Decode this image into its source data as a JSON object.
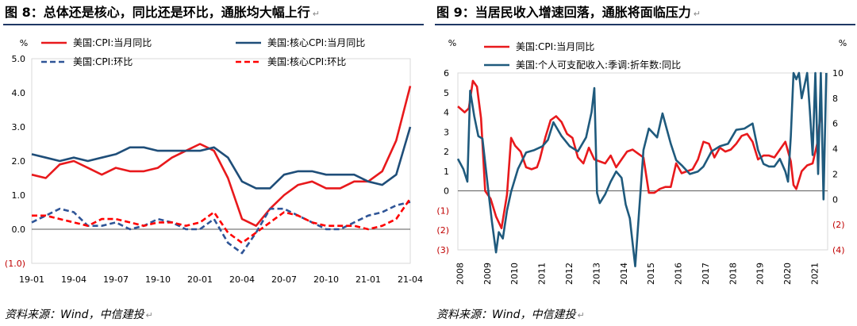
{
  "left": {
    "title": "图 8：总体还是核心，同比还是环比，通胀均大幅上行",
    "source": "资料来源：Wind，中信建投",
    "chart_data": {
      "type": "line",
      "ylabel": "%",
      "ylim": [
        -1.0,
        5.0
      ],
      "yticks": [
        -1.0,
        0.0,
        1.0,
        2.0,
        3.0,
        4.0,
        5.0
      ],
      "ytick_labels": [
        "(1.0)",
        "0.0",
        "1.0",
        "2.0",
        "3.0",
        "4.0",
        "5.0"
      ],
      "x_tick_labels": [
        "19-01",
        "19-04",
        "19-07",
        "19-10",
        "20-01",
        "20-04",
        "20-07",
        "20-10",
        "21-01",
        "21-04"
      ],
      "x": [
        "19-01",
        "19-02",
        "19-03",
        "19-04",
        "19-05",
        "19-06",
        "19-07",
        "19-08",
        "19-09",
        "19-10",
        "19-11",
        "19-12",
        "20-01",
        "20-02",
        "20-03",
        "20-04",
        "20-05",
        "20-06",
        "20-07",
        "20-08",
        "20-09",
        "20-10",
        "20-11",
        "20-12",
        "21-01",
        "21-02",
        "21-03",
        "21-04"
      ],
      "legend": "top",
      "series": [
        {
          "name": "美国:CPI:当月同比",
          "color": "#e8191c",
          "dash": "solid",
          "values": [
            1.6,
            1.5,
            1.9,
            2.0,
            1.8,
            1.6,
            1.8,
            1.7,
            1.7,
            1.8,
            2.1,
            2.3,
            2.5,
            2.3,
            1.5,
            0.3,
            0.1,
            0.6,
            1.0,
            1.3,
            1.4,
            1.2,
            1.2,
            1.4,
            1.4,
            1.7,
            2.6,
            4.2
          ]
        },
        {
          "name": "美国:核心CPI:当月同比",
          "color": "#1f4e79",
          "dash": "solid",
          "values": [
            2.2,
            2.1,
            2.0,
            2.1,
            2.0,
            2.1,
            2.2,
            2.4,
            2.4,
            2.3,
            2.3,
            2.3,
            2.3,
            2.4,
            2.1,
            1.4,
            1.2,
            1.2,
            1.6,
            1.7,
            1.7,
            1.6,
            1.6,
            1.6,
            1.4,
            1.3,
            1.6,
            3.0
          ]
        },
        {
          "name": "美国:CPI:环比",
          "color": "#2f5597",
          "dash": "dash",
          "values": [
            0.2,
            0.4,
            0.6,
            0.5,
            0.1,
            0.1,
            0.2,
            0.0,
            0.1,
            0.3,
            0.2,
            0.0,
            0.0,
            0.3,
            -0.4,
            -0.7,
            -0.1,
            0.6,
            0.6,
            0.4,
            0.2,
            0.0,
            0.0,
            0.2,
            0.4,
            0.5,
            0.7,
            0.8
          ]
        },
        {
          "name": "美国:核心CPI:环比",
          "color": "#ff0000",
          "dash": "dash",
          "values": [
            0.4,
            0.4,
            0.3,
            0.2,
            0.1,
            0.3,
            0.3,
            0.2,
            0.1,
            0.2,
            0.2,
            0.1,
            0.2,
            0.5,
            -0.1,
            -0.4,
            -0.1,
            0.2,
            0.5,
            0.4,
            0.2,
            0.1,
            0.1,
            0.1,
            0.0,
            0.1,
            0.3,
            0.9
          ]
        }
      ]
    }
  },
  "right": {
    "title": "图 9：当居民收入增速回落，通胀将面临压力",
    "source": "资料来源：Wind，中信建投",
    "chart_data": {
      "type": "line",
      "ylabel_left": "%",
      "ylabel_right": "%",
      "ylim_left": [
        -3,
        6
      ],
      "ylim_right": [
        -4,
        10
      ],
      "yticks_left": [
        -3,
        -2,
        -1,
        0,
        1,
        2,
        3,
        4,
        5,
        6
      ],
      "ytick_labels_left": [
        "(3)",
        "(2)",
        "(1)",
        "0",
        "1",
        "2",
        "3",
        "4",
        "5",
        "6"
      ],
      "yticks_right": [
        -4,
        -2,
        0,
        2,
        4,
        6,
        8,
        10
      ],
      "ytick_labels_right": [
        "(4)",
        "(2)",
        "0",
        "2",
        "4",
        "6",
        "8",
        "10"
      ],
      "x_tick_labels": [
        "2008",
        "2009",
        "2010",
        "2011",
        "2012",
        "2013",
        "2014",
        "2015",
        "2016",
        "2017",
        "2018",
        "2019",
        "2020",
        "2021"
      ],
      "xlim": [
        2008.0,
        2021.55
      ],
      "legend": "top-left",
      "series": [
        {
          "name": "美国:CPI:当月同比",
          "color": "#e8191c",
          "axis": "left",
          "x": [
            2008.0,
            2008.25,
            2008.4,
            2008.55,
            2008.7,
            2008.85,
            2009.0,
            2009.2,
            2009.4,
            2009.6,
            2009.8,
            2009.95,
            2010.1,
            2010.3,
            2010.5,
            2010.7,
            2010.9,
            2011.0,
            2011.2,
            2011.4,
            2011.6,
            2011.8,
            2012.0,
            2012.2,
            2012.4,
            2012.6,
            2012.8,
            2013.0,
            2013.2,
            2013.4,
            2013.6,
            2013.8,
            2014.0,
            2014.2,
            2014.4,
            2014.6,
            2014.8,
            2015.0,
            2015.2,
            2015.4,
            2015.6,
            2015.8,
            2016.0,
            2016.2,
            2016.4,
            2016.6,
            2016.8,
            2017.0,
            2017.2,
            2017.4,
            2017.6,
            2017.8,
            2018.0,
            2018.2,
            2018.4,
            2018.6,
            2018.8,
            2019.0,
            2019.2,
            2019.4,
            2019.6,
            2019.8,
            2020.0,
            2020.2,
            2020.3,
            2020.4,
            2020.6,
            2020.8,
            2021.0,
            2021.2,
            2021.3
          ],
          "values": [
            4.3,
            4.0,
            4.2,
            5.6,
            5.3,
            3.7,
            0.0,
            -0.4,
            -1.3,
            -1.9,
            -0.2,
            2.7,
            2.3,
            2.0,
            1.2,
            1.1,
            1.2,
            1.6,
            2.7,
            3.6,
            3.8,
            3.5,
            2.9,
            2.7,
            1.7,
            1.4,
            2.2,
            1.6,
            1.5,
            1.4,
            1.8,
            1.2,
            1.6,
            2.0,
            2.1,
            1.9,
            1.7,
            -0.1,
            -0.1,
            0.1,
            0.2,
            0.2,
            1.4,
            0.9,
            1.0,
            1.1,
            1.6,
            2.5,
            2.4,
            1.7,
            2.2,
            2.0,
            2.1,
            2.4,
            2.8,
            2.9,
            2.5,
            1.6,
            1.8,
            1.8,
            1.7,
            2.1,
            2.5,
            1.5,
            0.3,
            0.1,
            1.0,
            1.3,
            1.4,
            2.6,
            4.2
          ]
        },
        {
          "name": "美国:个人可支配收入:季调:折年数:同比",
          "color": "#1f5a7d",
          "axis": "right",
          "x": [
            2008.0,
            2008.2,
            2008.35,
            2008.45,
            2008.6,
            2008.75,
            2008.9,
            2009.1,
            2009.25,
            2009.4,
            2009.5,
            2009.65,
            2009.8,
            2009.95,
            2010.2,
            2010.5,
            2010.8,
            2011.1,
            2011.3,
            2011.5,
            2011.8,
            2012.1,
            2012.4,
            2012.7,
            2012.9,
            2013.0,
            2013.1,
            2013.2,
            2013.4,
            2013.6,
            2013.8,
            2014.0,
            2014.15,
            2014.3,
            2014.5,
            2014.8,
            2015.0,
            2015.3,
            2015.5,
            2015.8,
            2016.0,
            2016.2,
            2016.5,
            2016.8,
            2017.0,
            2017.3,
            2017.6,
            2017.9,
            2018.2,
            2018.5,
            2018.8,
            2019.0,
            2019.2,
            2019.4,
            2019.6,
            2019.8,
            2020.0,
            2020.1,
            2020.2,
            2020.3,
            2020.4,
            2020.5,
            2020.6,
            2020.7,
            2020.8,
            2020.9,
            2021.0,
            2021.1,
            2021.2,
            2021.3,
            2021.4,
            2021.5
          ],
          "values": [
            3.2,
            2.4,
            1.4,
            8.6,
            6.6,
            5.0,
            4.8,
            1.0,
            -1.8,
            -4.2,
            -2.6,
            -3.1,
            -0.9,
            0.6,
            2.4,
            3.7,
            3.9,
            4.2,
            4.7,
            6.1,
            5.0,
            4.2,
            3.8,
            4.9,
            6.9,
            8.8,
            0.5,
            -0.3,
            0.4,
            1.4,
            2.2,
            1.7,
            -0.4,
            -1.5,
            -5.3,
            3.9,
            5.6,
            4.9,
            6.8,
            4.4,
            3.1,
            2.7,
            2.0,
            2.2,
            2.6,
            3.8,
            4.2,
            4.4,
            5.5,
            5.6,
            6.0,
            3.9,
            2.8,
            2.6,
            2.6,
            3.2,
            2.2,
            1.4,
            5.0,
            10.0,
            9.5,
            10.0,
            8.0,
            9.0,
            10.0,
            7.0,
            3.5,
            10.0,
            2.0,
            10.0,
            0.0,
            10.0
          ]
        }
      ]
    }
  }
}
